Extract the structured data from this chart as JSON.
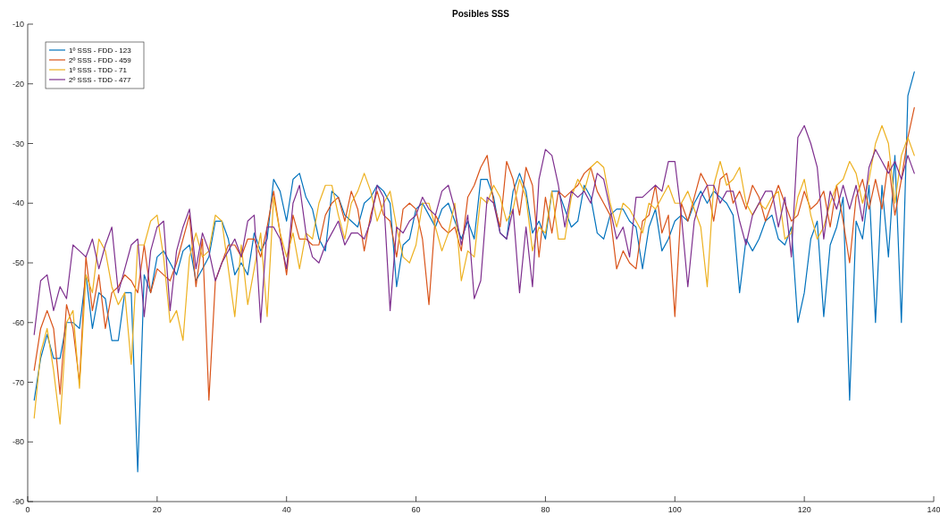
{
  "chart_data": {
    "type": "line",
    "title": "Posibles SSS",
    "x": [
      1,
      2,
      3,
      4,
      5,
      6,
      7,
      8,
      9,
      10,
      11,
      12,
      13,
      14,
      15,
      16,
      17,
      18,
      19,
      20,
      21,
      22,
      23,
      24,
      25,
      26,
      27,
      28,
      29,
      30,
      31,
      32,
      33,
      34,
      35,
      36,
      37,
      38,
      39,
      40,
      41,
      42,
      43,
      44,
      45,
      46,
      47,
      48,
      49,
      50,
      51,
      52,
      53,
      54,
      55,
      56,
      57,
      58,
      59,
      60,
      61,
      62,
      63,
      64,
      65,
      66,
      67,
      68,
      69,
      70,
      71,
      72,
      73,
      74,
      75,
      76,
      77,
      78,
      79,
      80,
      81,
      82,
      83,
      84,
      85,
      86,
      87,
      88,
      89,
      90,
      91,
      92,
      93,
      94,
      95,
      96,
      97,
      98,
      99,
      100,
      101,
      102,
      103,
      104,
      105,
      106,
      107,
      108,
      109,
      110,
      111,
      112,
      113,
      114,
      115,
      116,
      117,
      118,
      119,
      120,
      121,
      122,
      123,
      124,
      125,
      126,
      127,
      128,
      129,
      130,
      131,
      132,
      133,
      134,
      135,
      136,
      137
    ],
    "series": [
      {
        "name": "1º SSS - FDD - 123",
        "color": "#0072bd",
        "values": [
          -73,
          -66,
          -62,
          -66,
          -66,
          -60,
          -60,
          -61,
          -52,
          -61,
          -55,
          -56,
          -63,
          -63,
          -55,
          -55,
          -85,
          -52,
          -55,
          -49,
          -48,
          -50,
          -52,
          -48,
          -47,
          -53,
          -51,
          -49,
          -43,
          -43,
          -46,
          -52,
          -50,
          -52,
          -45,
          -48,
          -46,
          -36,
          -38,
          -43,
          -36,
          -35,
          -39,
          -41,
          -46,
          -48,
          -38,
          -39,
          -42,
          -43,
          -44,
          -40,
          -39,
          -37,
          -38,
          -40,
          -54,
          -47,
          -46,
          -41,
          -40,
          -42,
          -44,
          -41,
          -40,
          -43,
          -46,
          -43,
          -46,
          -36,
          -36,
          -39,
          -45,
          -46,
          -38,
          -35,
          -38,
          -45,
          -43,
          -46,
          -38,
          -38,
          -41,
          -44,
          -43,
          -37,
          -39,
          -45,
          -46,
          -42,
          -41,
          -41,
          -43,
          -44,
          -51,
          -44,
          -41,
          -48,
          -46,
          -43,
          -42,
          -43,
          -40,
          -38,
          -40,
          -38,
          -39,
          -40,
          -42,
          -55,
          -46,
          -48,
          -46,
          -43,
          -42,
          -46,
          -47,
          -44,
          -60,
          -55,
          -46,
          -43,
          -59,
          -47,
          -44,
          -39,
          -73,
          -43,
          -46,
          -37,
          -60,
          -37,
          -49,
          -32,
          -60,
          -22,
          -18
        ]
      },
      {
        "name": "2º SSS - FDD - 459",
        "color": "#d95319",
        "values": [
          -68,
          -61,
          -58,
          -61,
          -72,
          -57,
          -61,
          -70,
          -49,
          -58,
          -52,
          -61,
          -55,
          -54,
          -52,
          -53,
          -55,
          -47,
          -55,
          -51,
          -52,
          -53,
          -50,
          -46,
          -42,
          -54,
          -46,
          -73,
          -53,
          -50,
          -47,
          -47,
          -49,
          -46,
          -46,
          -49,
          -44,
          -38,
          -45,
          -52,
          -42,
          -46,
          -46,
          -47,
          -47,
          -42,
          -40,
          -39,
          -43,
          -38,
          -41,
          -48,
          -42,
          -38,
          -42,
          -43,
          -49,
          -41,
          -40,
          -41,
          -46,
          -57,
          -42,
          -44,
          -45,
          -44,
          -48,
          -39,
          -37,
          -34,
          -32,
          -40,
          -44,
          -33,
          -36,
          -42,
          -34,
          -37,
          -49,
          -39,
          -45,
          -38,
          -39,
          -38,
          -37,
          -35,
          -34,
          -38,
          -40,
          -42,
          -51,
          -48,
          -50,
          -51,
          -43,
          -42,
          -37,
          -45,
          -42,
          -59,
          -40,
          -43,
          -39,
          -35,
          -37,
          -43,
          -36,
          -35,
          -40,
          -38,
          -41,
          -37,
          -39,
          -43,
          -40,
          -37,
          -40,
          -43,
          -42,
          -38,
          -41,
          -40,
          -38,
          -44,
          -37,
          -43,
          -50,
          -39,
          -36,
          -41,
          -36,
          -41,
          -33,
          -42,
          -36,
          -29,
          -24
        ]
      },
      {
        "name": "1º SSS - TDD - 71",
        "color": "#edb120",
        "values": [
          -76,
          -65,
          -61,
          -68,
          -77,
          -60,
          -58,
          -71,
          -52,
          -55,
          -46,
          -48,
          -54,
          -57,
          -55,
          -67,
          -47,
          -47,
          -43,
          -42,
          -49,
          -60,
          -58,
          -63,
          -49,
          -45,
          -49,
          -48,
          -42,
          -43,
          -51,
          -59,
          -47,
          -57,
          -51,
          -45,
          -59,
          -39,
          -45,
          -49,
          -45,
          -51,
          -45,
          -46,
          -40,
          -37,
          -37,
          -42,
          -46,
          -40,
          -38,
          -35,
          -38,
          -43,
          -40,
          -38,
          -44,
          -49,
          -50,
          -47,
          -40,
          -40,
          -44,
          -48,
          -45,
          -40,
          -53,
          -48,
          -49,
          -39,
          -40,
          -37,
          -39,
          -43,
          -41,
          -36,
          -39,
          -48,
          -44,
          -45,
          -38,
          -46,
          -46,
          -39,
          -36,
          -38,
          -34,
          -33,
          -34,
          -40,
          -44,
          -40,
          -41,
          -43,
          -45,
          -40,
          -41,
          -39,
          -37,
          -40,
          -40,
          -38,
          -41,
          -44,
          -54,
          -37,
          -33,
          -37,
          -36,
          -34,
          -40,
          -42,
          -40,
          -41,
          -39,
          -38,
          -46,
          -45,
          -39,
          -36,
          -42,
          -46,
          -44,
          -40,
          -37,
          -36,
          -33,
          -35,
          -40,
          -36,
          -30,
          -27,
          -30,
          -40,
          -32,
          -29,
          -32
        ]
      },
      {
        "name": "2º SSS - TDD - 477",
        "color": "#7e2f8e",
        "values": [
          -62,
          -53,
          -52,
          -58,
          -54,
          -56,
          -47,
          -48,
          -49,
          -46,
          -51,
          -47,
          -44,
          -55,
          -51,
          -47,
          -46,
          -59,
          -48,
          -44,
          -43,
          -58,
          -48,
          -44,
          -41,
          -51,
          -45,
          -48,
          -53,
          -50,
          -48,
          -46,
          -49,
          -43,
          -42,
          -60,
          -44,
          -44,
          -46,
          -51,
          -40,
          -37,
          -45,
          -49,
          -50,
          -47,
          -45,
          -43,
          -47,
          -45,
          -45,
          -46,
          -43,
          -37,
          -39,
          -58,
          -44,
          -45,
          -43,
          -42,
          -39,
          -41,
          -42,
          -38,
          -37,
          -41,
          -47,
          -42,
          -56,
          -53,
          -39,
          -40,
          -45,
          -46,
          -41,
          -55,
          -44,
          -54,
          -36,
          -31,
          -32,
          -37,
          -44,
          -38,
          -39,
          -38,
          -40,
          -35,
          -36,
          -41,
          -46,
          -44,
          -49,
          -39,
          -39,
          -38,
          -37,
          -38,
          -33,
          -33,
          -42,
          -54,
          -43,
          -39,
          -37,
          -37,
          -40,
          -38,
          -38,
          -43,
          -47,
          -42,
          -40,
          -38,
          -38,
          -44,
          -39,
          -49,
          -29,
          -27,
          -30,
          -34,
          -46,
          -38,
          -41,
          -37,
          -41,
          -37,
          -43,
          -34,
          -31,
          -33,
          -35,
          -33,
          -36,
          -32,
          -35
        ]
      }
    ],
    "xlim": [
      0,
      140
    ],
    "xticks": [
      0,
      20,
      40,
      60,
      80,
      100,
      120,
      140
    ],
    "ylim": [
      -90,
      -10
    ],
    "yticks": [
      -90,
      -80,
      -70,
      -60,
      -50,
      -40,
      -30,
      -20,
      -10
    ],
    "legend": "top left",
    "line_style": "solid"
  }
}
